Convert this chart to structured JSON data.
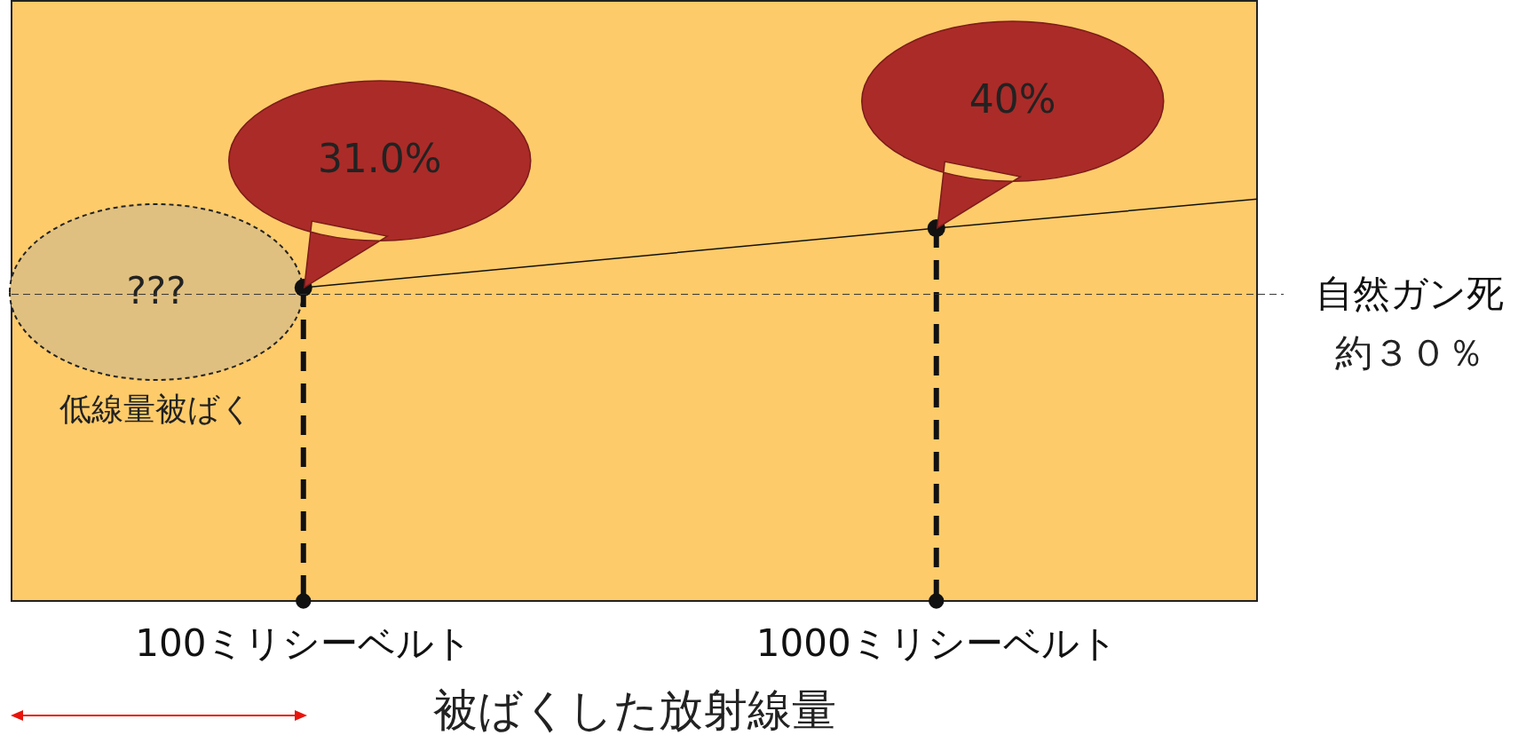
{
  "chart_data": {
    "type": "line",
    "xlabel": "被ばくした放射線量",
    "x": [
      100,
      1000,
      1456
    ],
    "xlim": [
      -315,
      1456
    ],
    "xticks": [
      {
        "value": 100,
        "label": "100ミリシーベルト"
      },
      {
        "value": 1000,
        "label": "1000ミリシーベルト"
      }
    ],
    "ylim": [
      -16.4,
      74.4
    ],
    "tick_labels": "x",
    "series": [
      {
        "color": "#111111",
        "values": [
          31.0,
          40,
          44.4
        ],
        "value_labels": [
          "31.0%",
          "40%",
          null
        ]
      }
    ],
    "ref_lines": [
      {
        "axis": "y",
        "value": 30,
        "label": "自然ガン死",
        "color": "#333333",
        "line_style": "dashed"
      }
    ],
    "annotations": [
      "???",
      "低線量被ばく",
      "約３０％"
    ],
    "marker": "circle",
    "grid": false
  }
}
